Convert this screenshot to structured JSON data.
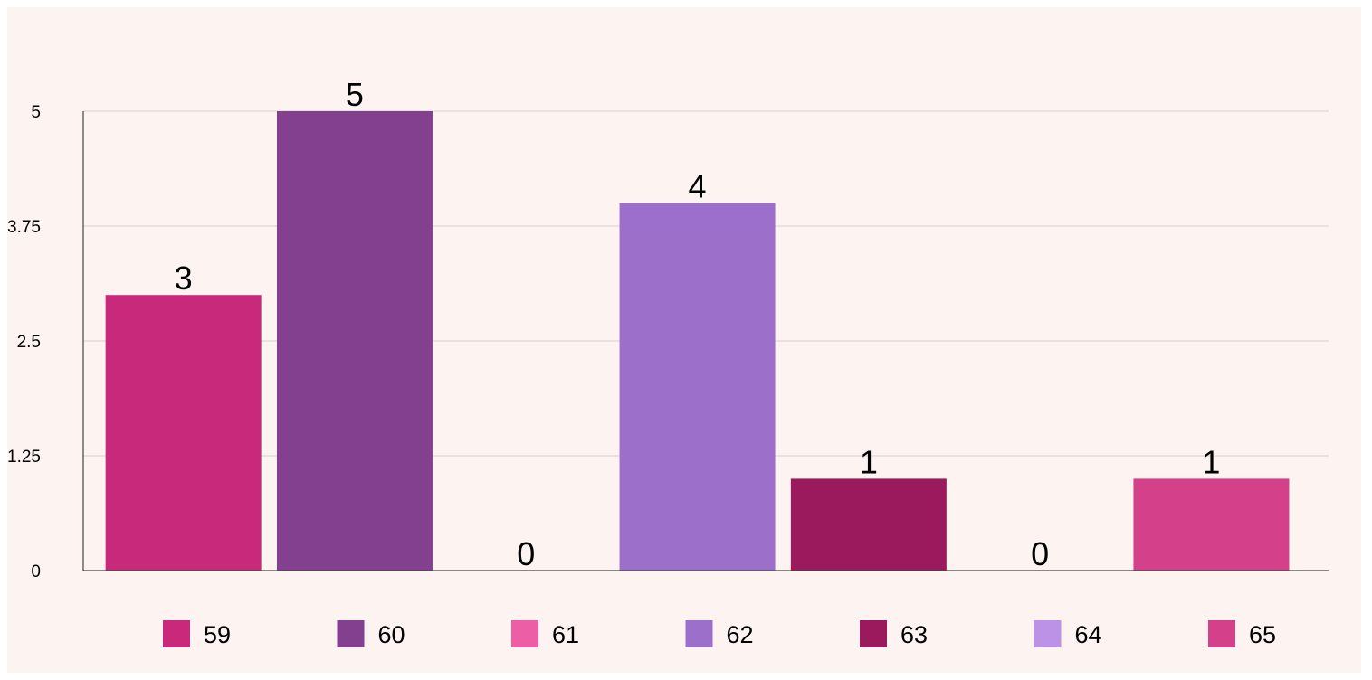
{
  "chart_data": {
    "type": "bar",
    "title": "",
    "xlabel": "",
    "ylabel": "",
    "categories": [
      "59",
      "60",
      "61",
      "62",
      "63",
      "64",
      "65"
    ],
    "values": [
      3,
      5,
      0,
      4,
      1,
      0,
      1
    ],
    "colors": [
      "#c9297a",
      "#83408f",
      "#ec5fa6",
      "#9c6fca",
      "#9b1a5e",
      "#bb92e5",
      "#d4418a"
    ],
    "ylim": [
      0,
      5
    ],
    "yticks": [
      "0",
      "1.25",
      "2.5",
      "3.75",
      "5"
    ],
    "ytick_values": [
      0,
      1.25,
      2.5,
      3.75,
      5
    ],
    "grid": true,
    "legend_position": "bottom",
    "background": "#fdf3f1"
  }
}
